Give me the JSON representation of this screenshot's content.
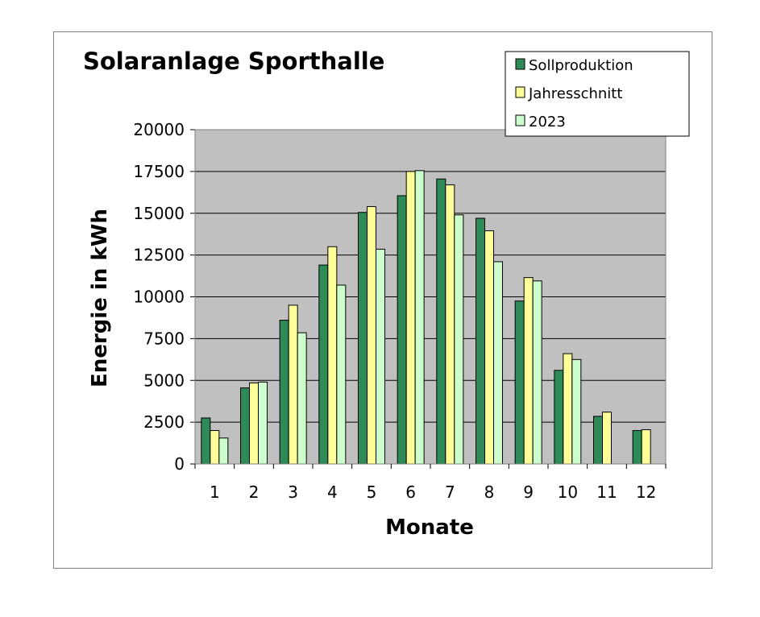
{
  "chart_data": {
    "type": "bar",
    "title": "Solaranlage Sporthalle",
    "xlabel": "Monate",
    "ylabel": "Energie in kWh",
    "categories": [
      "1",
      "2",
      "3",
      "4",
      "5",
      "6",
      "7",
      "8",
      "9",
      "10",
      "11",
      "12"
    ],
    "ylim": [
      0,
      20000
    ],
    "yticks": [
      0,
      2500,
      5000,
      7500,
      10000,
      12500,
      15000,
      17500,
      20000
    ],
    "grid": true,
    "legend_position": "top-right",
    "plot_background": "#c0c0c0",
    "series": [
      {
        "name": "Sollproduktion",
        "color": "#2e8b57",
        "values": [
          2750,
          4550,
          8600,
          11900,
          15050,
          16050,
          17050,
          14700,
          9750,
          5600,
          2850,
          2000
        ]
      },
      {
        "name": "Jahresschnitt",
        "color": "#ffff99",
        "values": [
          2000,
          4850,
          9500,
          13000,
          15400,
          17500,
          16700,
          13950,
          11150,
          6600,
          3100,
          2050
        ]
      },
      {
        "name": "2023",
        "color": "#ccffcc",
        "values": [
          1550,
          4900,
          7850,
          10700,
          12850,
          17550,
          14900,
          12100,
          10950,
          6250,
          null,
          null
        ]
      }
    ]
  }
}
